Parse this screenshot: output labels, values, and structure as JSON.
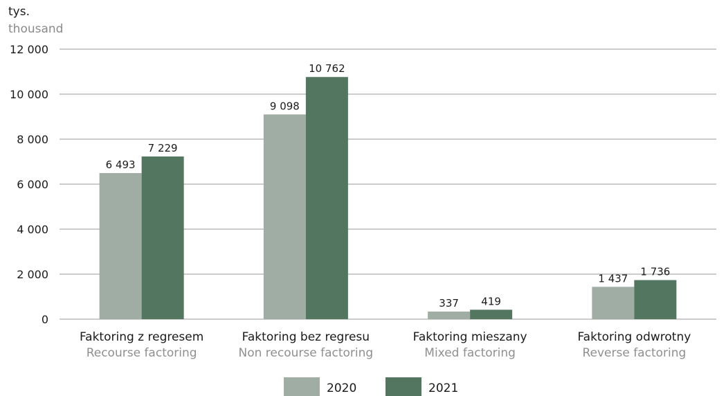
{
  "chart_data": {
    "type": "bar",
    "unit_label": "tys.",
    "unit_label_en": "thousand",
    "categories": [
      {
        "label": "Faktoring z regresem",
        "label_en": "Recourse factoring"
      },
      {
        "label": "Faktoring bez regresu",
        "label_en": "Non recourse factoring"
      },
      {
        "label": "Faktoring mieszany",
        "label_en": "Mixed factoring"
      },
      {
        "label": "Faktoring odwrotny",
        "label_en": "Reverse factoring"
      }
    ],
    "series": [
      {
        "name": "2020",
        "color": "#9fada4",
        "values": [
          6493,
          9098,
          337,
          1437
        ],
        "labels": [
          "6 493",
          "9 098",
          "337",
          "1 437"
        ]
      },
      {
        "name": "2021",
        "color": "#537660",
        "values": [
          7229,
          10762,
          419,
          1736
        ],
        "labels": [
          "7 229",
          "10 762",
          "419",
          "1 736"
        ]
      }
    ],
    "yticks": [
      {
        "value": 0,
        "label": "0"
      },
      {
        "value": 2000,
        "label": "2 000"
      },
      {
        "value": 4000,
        "label": "4 000"
      },
      {
        "value": 6000,
        "label": "6 000"
      },
      {
        "value": 8000,
        "label": "8 000"
      },
      {
        "value": 10000,
        "label": "10 000"
      },
      {
        "value": 12000,
        "label": "12 000"
      }
    ],
    "ylim": [
      0,
      12000
    ],
    "grid": true,
    "legend_position": "bottom"
  }
}
